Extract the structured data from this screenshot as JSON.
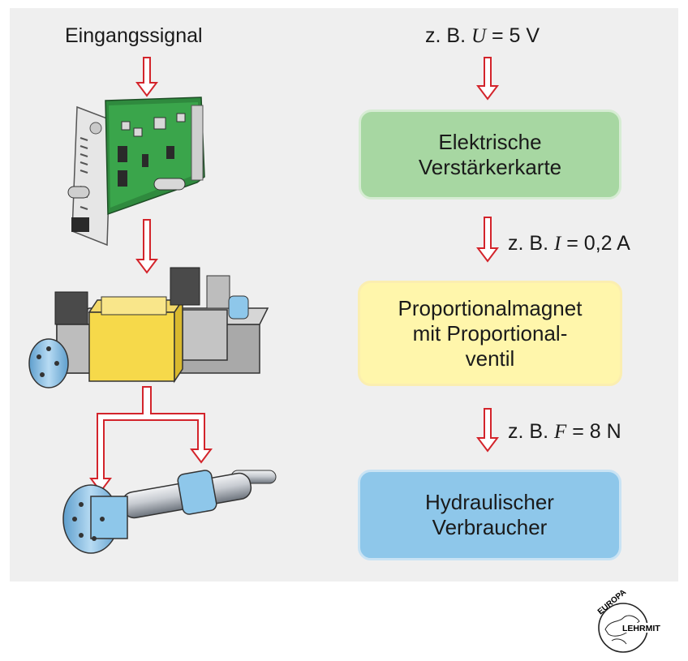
{
  "left": {
    "input_label": "Eingangssignal"
  },
  "right": {
    "signal_1": {
      "prefix": "z. B.",
      "symbol": "U",
      "rest": "= 5 V"
    },
    "box_1": {
      "line1": "Elektrische",
      "line2": "Verstärkerkarte"
    },
    "signal_2": {
      "prefix": "z. B.",
      "symbol": "I",
      "rest": "= 0,2 A"
    },
    "box_2": {
      "line1": "Proportionalmagnet",
      "line2": "mit Proportional-",
      "line3": "ventil"
    },
    "signal_3": {
      "prefix": "z. B.",
      "symbol": "F",
      "rest": "= 8 N"
    },
    "box_3": {
      "line1": "Hydraulischer",
      "line2": "Verbraucher"
    }
  },
  "logo": {
    "top": "EUROPA",
    "bottom": "LEHRMITTEL"
  },
  "colors": {
    "arrow": "#d3242b",
    "green_box": "#a7d7a2",
    "yellow_box": "#fff6ab",
    "blue_box": "#8ec7ea",
    "panel": "#efefef"
  }
}
